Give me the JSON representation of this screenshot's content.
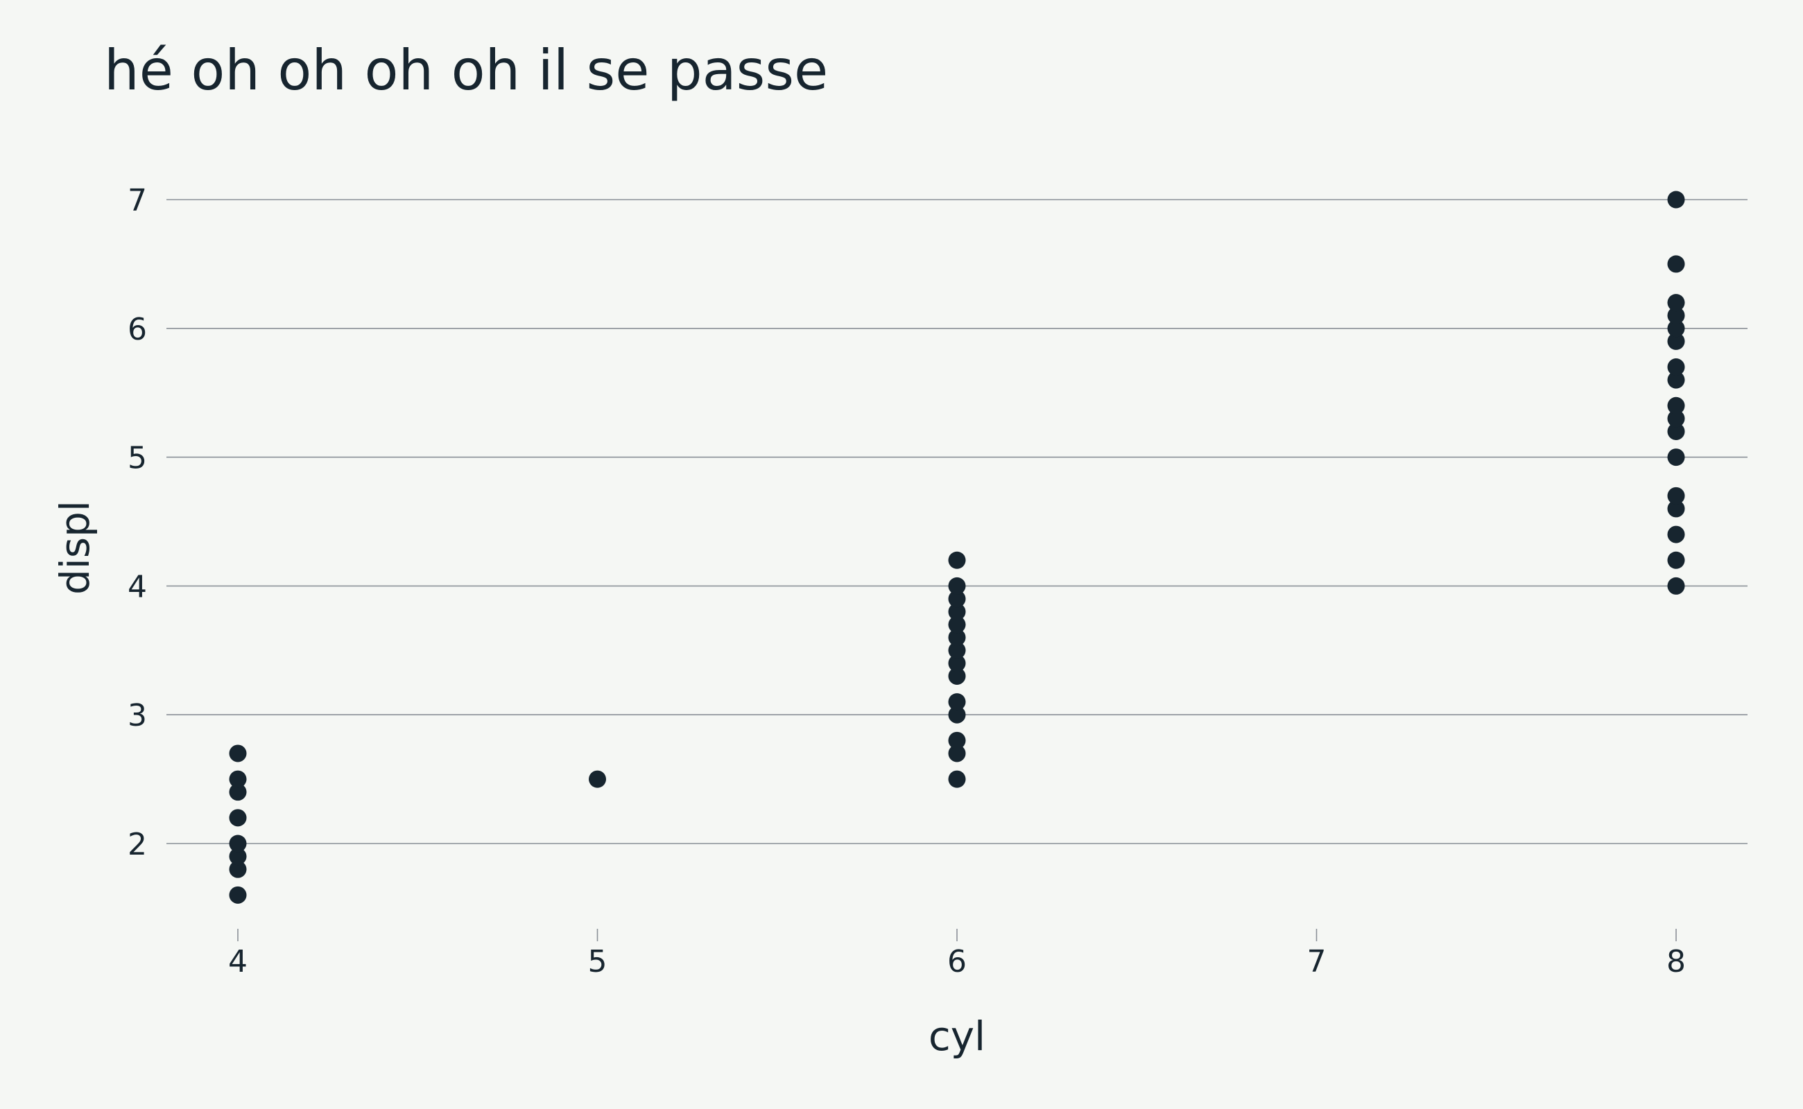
{
  "chart_data": {
    "type": "scatter",
    "title": "hé oh oh oh oh il se passe",
    "xlabel": "cyl",
    "ylabel": "displ",
    "xlim": [
      3.8,
      8.2
    ],
    "ylim": [
      1.4,
      7.3
    ],
    "xticks": [
      4,
      5,
      6,
      7,
      8
    ],
    "yticks": [
      2,
      3,
      4,
      5,
      6,
      7
    ],
    "grid": "horizontal",
    "colors": {
      "background": "#f5f7f4",
      "point": "#17252f",
      "grid": "#8a9097",
      "text": "#17252f"
    },
    "series": [
      {
        "points": [
          [
            4,
            1.6
          ],
          [
            4,
            1.8
          ],
          [
            4,
            1.9
          ],
          [
            4,
            2.0
          ],
          [
            4,
            2.2
          ],
          [
            4,
            2.4
          ],
          [
            4,
            2.5
          ],
          [
            4,
            2.7
          ],
          [
            5,
            2.5
          ],
          [
            6,
            2.5
          ],
          [
            6,
            2.7
          ],
          [
            6,
            2.8
          ],
          [
            6,
            3.0
          ],
          [
            6,
            3.1
          ],
          [
            6,
            3.3
          ],
          [
            6,
            3.4
          ],
          [
            6,
            3.5
          ],
          [
            6,
            3.6
          ],
          [
            6,
            3.7
          ],
          [
            6,
            3.8
          ],
          [
            6,
            3.9
          ],
          [
            6,
            4.0
          ],
          [
            6,
            4.2
          ],
          [
            8,
            4.0
          ],
          [
            8,
            4.2
          ],
          [
            8,
            4.4
          ],
          [
            8,
            4.6
          ],
          [
            8,
            4.7
          ],
          [
            8,
            5.0
          ],
          [
            8,
            5.2
          ],
          [
            8,
            5.3
          ],
          [
            8,
            5.4
          ],
          [
            8,
            5.6
          ],
          [
            8,
            5.7
          ],
          [
            8,
            5.9
          ],
          [
            8,
            6.0
          ],
          [
            8,
            6.1
          ],
          [
            8,
            6.2
          ],
          [
            8,
            6.5
          ],
          [
            8,
            7.0
          ]
        ]
      }
    ]
  }
}
